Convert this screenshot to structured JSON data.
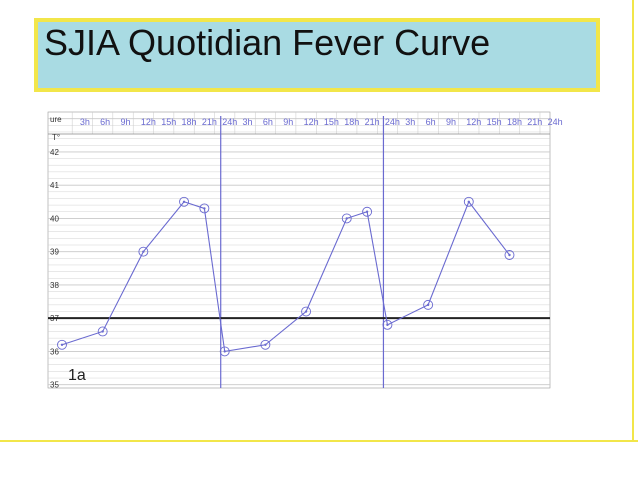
{
  "slide": {
    "title": "SJIA Quotidian Fever Curve",
    "colors": {
      "title_bg": "#a9dbe3",
      "title_border": "#f2e64a",
      "curve": "#6a6ad0",
      "grid": "#c8c8c8",
      "threshold": "#222222"
    }
  },
  "chart_data": {
    "type": "line",
    "title": "",
    "corner_label": "ure",
    "unit_label": "T°",
    "panel_label": "1a",
    "xlabel": "",
    "ylabel": "",
    "ylim": [
      34.9,
      43.2
    ],
    "y_ticks": [
      35,
      36,
      37,
      38,
      39,
      40,
      41,
      42
    ],
    "grid": true,
    "threshold": 37,
    "x_tick_labels": [
      "3h",
      "6h",
      "9h",
      "12h",
      "15h",
      "18h",
      "21h",
      "24h",
      "3h",
      "6h",
      "9h",
      "12h",
      "15h",
      "18h",
      "21h",
      "24h",
      "3h",
      "6h",
      "9h",
      "12h",
      "15h",
      "18h",
      "21h",
      "24h"
    ],
    "day_dividers": [
      24,
      48
    ],
    "series": [
      {
        "name": "",
        "x": [
          0,
          6,
          12,
          18,
          21,
          24,
          30,
          36,
          42,
          45,
          48,
          54,
          60,
          66
        ],
        "y": [
          36.2,
          36.6,
          39.0,
          40.5,
          40.3,
          36.0,
          36.2,
          37.2,
          40.0,
          40.2,
          36.8,
          37.4,
          40.5,
          38.9
        ]
      }
    ]
  }
}
